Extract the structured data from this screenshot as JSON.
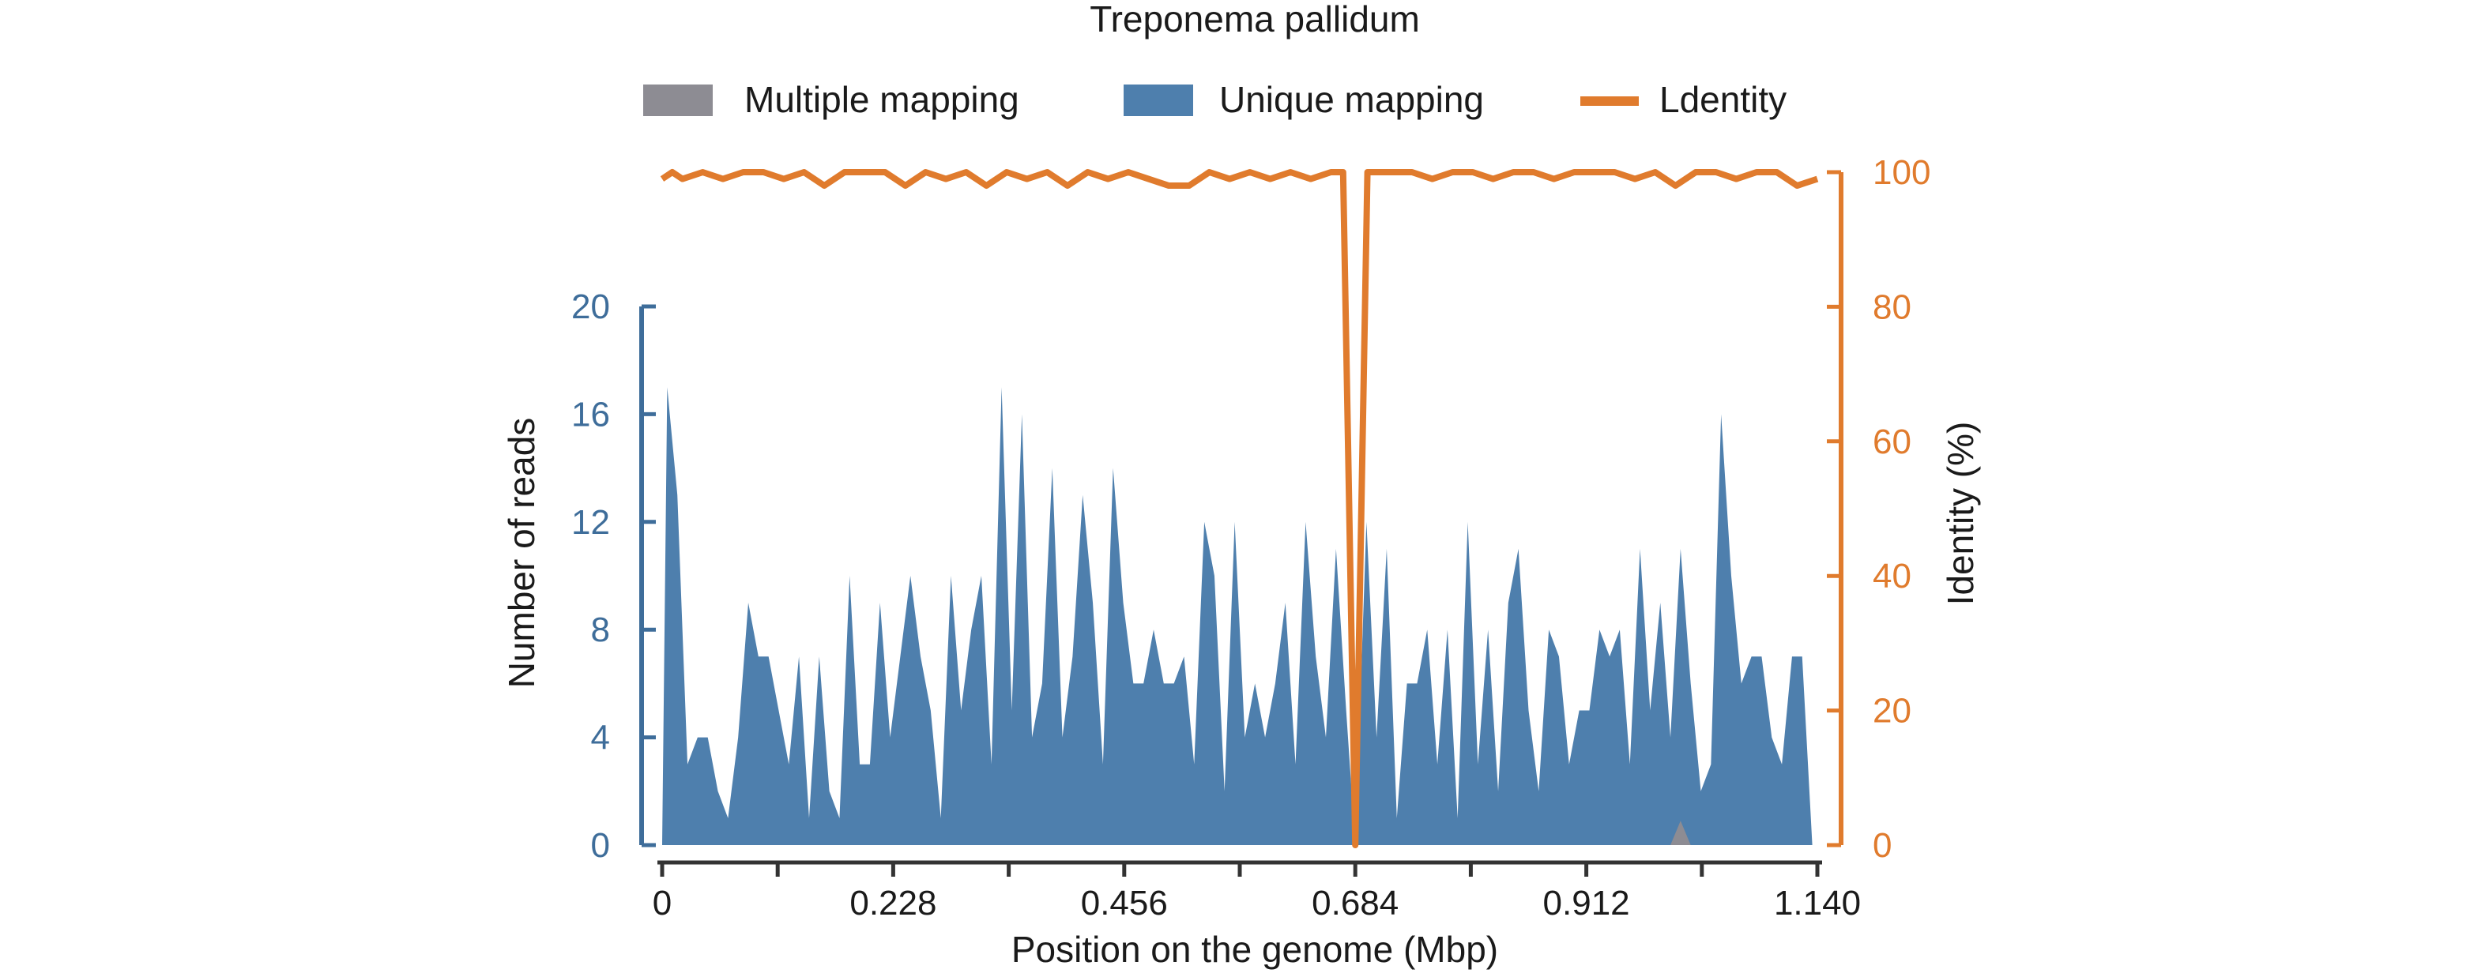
{
  "chart_data": {
    "type": "area",
    "title": "Treponema pallidum",
    "xlabel": "Position on the genome (Mbp)",
    "ylabel": "Number of reads",
    "y2label": "Identity (%)",
    "xlim": [
      0,
      1.14
    ],
    "ylim": [
      0,
      20
    ],
    "y2lim": [
      0,
      100
    ],
    "x_ticks": [
      0,
      0.228,
      0.456,
      0.684,
      0.912,
      1.14
    ],
    "x_tick_labels": [
      "0",
      "0.228",
      "0.456",
      "0.684",
      "0.912",
      "1.140"
    ],
    "y_ticks": [
      0,
      4,
      8,
      12,
      16,
      20
    ],
    "y2_ticks": [
      0,
      20,
      40,
      60,
      80,
      100
    ],
    "grid": false,
    "legend_position": "top",
    "legend": [
      {
        "label": "Multiple mapping",
        "kind": "box",
        "color": "#8d8c93"
      },
      {
        "label": "Unique mapping",
        "kind": "box",
        "color": "#4e7fad"
      },
      {
        "label": "Ldentity",
        "kind": "line",
        "color": "#e07b2d"
      }
    ],
    "series": [
      {
        "name": "Unique mapping",
        "axis": "left",
        "color": "#4e7fad",
        "x": [
          0,
          0.005,
          0.015,
          0.025,
          0.035,
          0.045,
          0.055,
          0.065,
          0.075,
          0.085,
          0.095,
          0.105,
          0.115,
          0.125,
          0.135,
          0.145,
          0.155,
          0.165,
          0.175,
          0.185,
          0.195,
          0.205,
          0.215,
          0.225,
          0.235,
          0.245,
          0.255,
          0.265,
          0.275,
          0.285,
          0.295,
          0.305,
          0.315,
          0.325,
          0.335,
          0.345,
          0.355,
          0.365,
          0.375,
          0.385,
          0.395,
          0.405,
          0.415,
          0.425,
          0.435,
          0.445,
          0.455,
          0.465,
          0.475,
          0.485,
          0.495,
          0.505,
          0.515,
          0.525,
          0.535,
          0.545,
          0.555,
          0.565,
          0.575,
          0.585,
          0.595,
          0.605,
          0.615,
          0.625,
          0.635,
          0.645,
          0.655,
          0.665,
          0.675,
          0.684,
          0.695,
          0.705,
          0.715,
          0.725,
          0.735,
          0.745,
          0.755,
          0.765,
          0.775,
          0.785,
          0.795,
          0.805,
          0.815,
          0.825,
          0.835,
          0.845,
          0.855,
          0.865,
          0.875,
          0.885,
          0.895,
          0.905,
          0.915,
          0.925,
          0.935,
          0.945,
          0.955,
          0.965,
          0.975,
          0.985,
          0.995,
          1.005,
          1.015,
          1.025,
          1.035,
          1.045,
          1.055,
          1.065,
          1.075,
          1.085,
          1.095,
          1.105,
          1.115,
          1.125,
          1.135
        ],
        "values": [
          0,
          17,
          13,
          3,
          4,
          4,
          2,
          1,
          4,
          9,
          7,
          7,
          5,
          3,
          7,
          1,
          7,
          2,
          1,
          10,
          3,
          3,
          9,
          4,
          7,
          10,
          7,
          5,
          1,
          10,
          5,
          8,
          10,
          3,
          17,
          5,
          16,
          4,
          6,
          14,
          4,
          7,
          13,
          9,
          3,
          14,
          9,
          6,
          6,
          8,
          6,
          6,
          7,
          3,
          12,
          10,
          2,
          12,
          4,
          6,
          4,
          6,
          9,
          3,
          12,
          7,
          4,
          11,
          5,
          0,
          12,
          4,
          11,
          1,
          6,
          6,
          8,
          3,
          8,
          1,
          12,
          3,
          8,
          2,
          9,
          11,
          5,
          2,
          8,
          7,
          3,
          5,
          5,
          8,
          7,
          8,
          3,
          11,
          5,
          9,
          4,
          11,
          6,
          2,
          3,
          16,
          10,
          6,
          7,
          7,
          4,
          3,
          7,
          7,
          0
        ]
      },
      {
        "name": "Multiple mapping",
        "axis": "left",
        "color": "#8d8c93",
        "x": [
          0.995,
          1.005,
          1.015
        ],
        "values": [
          0,
          0.9,
          0
        ]
      },
      {
        "name": "Ldentity",
        "axis": "right",
        "color": "#e07b2d",
        "x": [
          0,
          0.01,
          0.02,
          0.04,
          0.06,
          0.08,
          0.1,
          0.12,
          0.14,
          0.16,
          0.18,
          0.2,
          0.22,
          0.24,
          0.26,
          0.28,
          0.3,
          0.32,
          0.34,
          0.36,
          0.38,
          0.4,
          0.42,
          0.44,
          0.46,
          0.48,
          0.5,
          0.52,
          0.54,
          0.56,
          0.58,
          0.6,
          0.62,
          0.64,
          0.66,
          0.672,
          0.684,
          0.696,
          0.71,
          0.74,
          0.76,
          0.78,
          0.8,
          0.82,
          0.84,
          0.86,
          0.88,
          0.9,
          0.92,
          0.94,
          0.96,
          0.98,
          1.0,
          1.02,
          1.04,
          1.06,
          1.08,
          1.1,
          1.12,
          1.14
        ],
        "values": [
          99,
          100,
          99,
          100,
          99,
          100,
          100,
          99,
          100,
          98,
          100,
          100,
          100,
          98,
          100,
          99,
          100,
          98,
          100,
          99,
          100,
          98,
          100,
          99,
          100,
          99,
          98,
          98,
          100,
          99,
          100,
          99,
          100,
          99,
          100,
          100,
          0,
          100,
          100,
          100,
          99,
          100,
          100,
          99,
          100,
          100,
          99,
          100,
          100,
          100,
          99,
          100,
          98,
          100,
          100,
          99,
          100,
          100,
          98,
          99
        ]
      }
    ]
  }
}
